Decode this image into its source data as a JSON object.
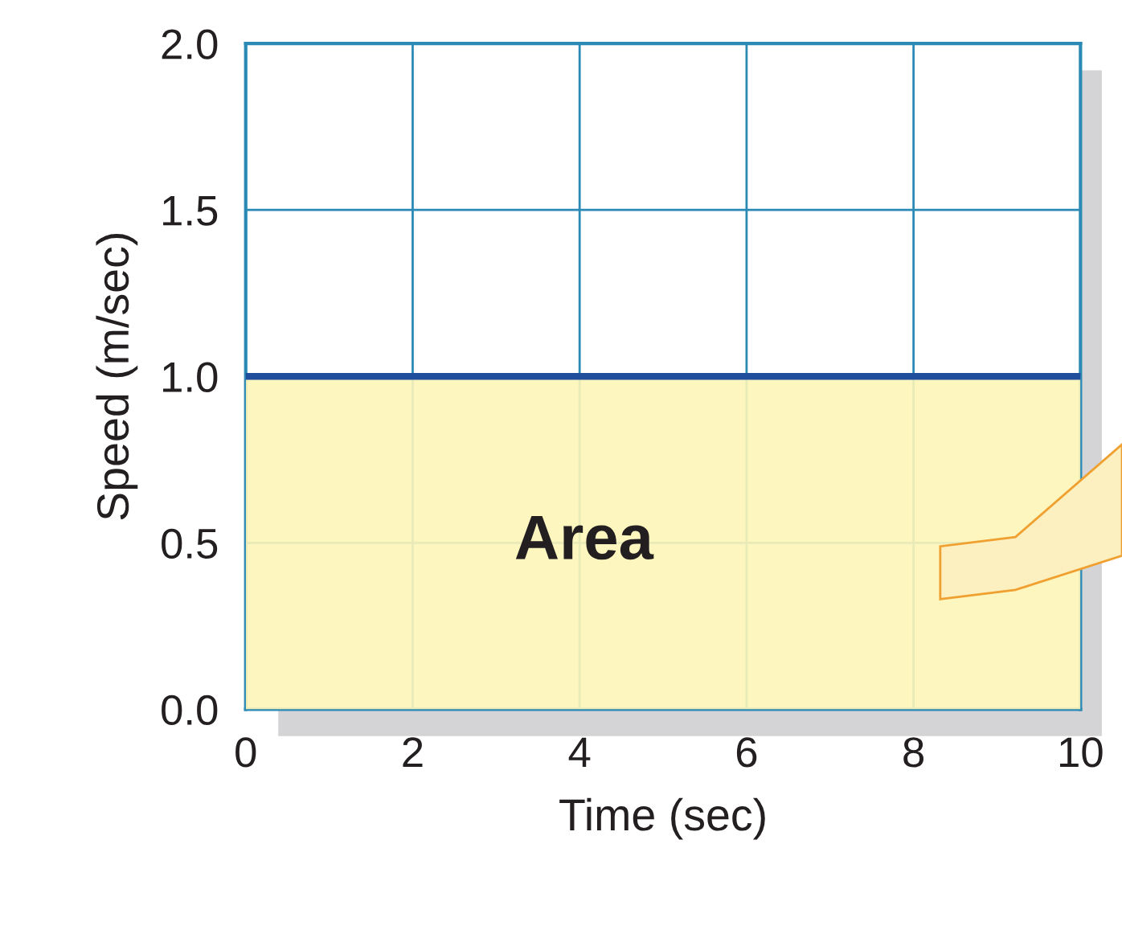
{
  "chart_data": {
    "type": "area",
    "x": [
      0,
      10
    ],
    "series": [
      {
        "color": "#fdf5b8",
        "values": [
          1.0,
          1.0
        ]
      },
      {
        "type": "line",
        "color": "#1f4e9c",
        "values": [
          1.0,
          1.0
        ]
      }
    ],
    "xlim": [
      0,
      10
    ],
    "ylim": [
      0,
      2
    ],
    "xticks": [
      0,
      2,
      4,
      6,
      8,
      10
    ],
    "yticks": [
      {
        "value": 0,
        "label": "0.0"
      },
      {
        "value": 0.5,
        "label": "0.5"
      },
      {
        "value": 1.0,
        "label": "1.0"
      },
      {
        "value": 1.5,
        "label": "1.5"
      },
      {
        "value": 2.0,
        "label": "2.0"
      }
    ],
    "xlabel": "Time (sec)",
    "ylabel": "Speed (m/sec)",
    "grid": true,
    "annotations": [
      "Area"
    ]
  }
}
